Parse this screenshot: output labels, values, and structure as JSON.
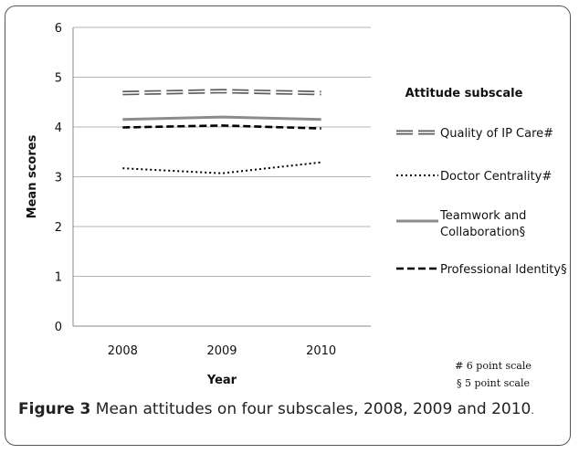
{
  "chart_data": {
    "type": "line",
    "categories": [
      "2008",
      "2009",
      "2010"
    ],
    "xlabel": "Year",
    "ylabel": "Mean scores",
    "ylim": [
      0,
      6
    ],
    "yticks": [
      "0",
      "1",
      "2",
      "3",
      "4",
      "5",
      "6"
    ],
    "grid": true,
    "legend_title": "Attitude subscale",
    "legend_position": "right",
    "series": [
      {
        "name": "Quality of IP Care#",
        "values": [
          4.68,
          4.72,
          4.68
        ],
        "style": "double-dash",
        "color": "#6a6a6a"
      },
      {
        "name": "Doctor Centrality#",
        "values": [
          3.17,
          3.07,
          3.29
        ],
        "style": "dotted",
        "color": "#000000"
      },
      {
        "name_lines": [
          "Teamwork and",
          "Collaboration§"
        ],
        "values": [
          4.15,
          4.2,
          4.15
        ],
        "style": "solid",
        "color": "#8c8c8c"
      },
      {
        "name": "Professional Identity§",
        "values": [
          3.99,
          4.03,
          3.97
        ],
        "style": "dashed",
        "color": "#000000"
      }
    ],
    "notes": [
      "# 6 point scale",
      "§ 5 point scale"
    ]
  },
  "caption": {
    "lead": "Figure 3",
    "text": " Mean attitudes on four subscales, 2008, 2009 and 2010",
    "end": "."
  }
}
